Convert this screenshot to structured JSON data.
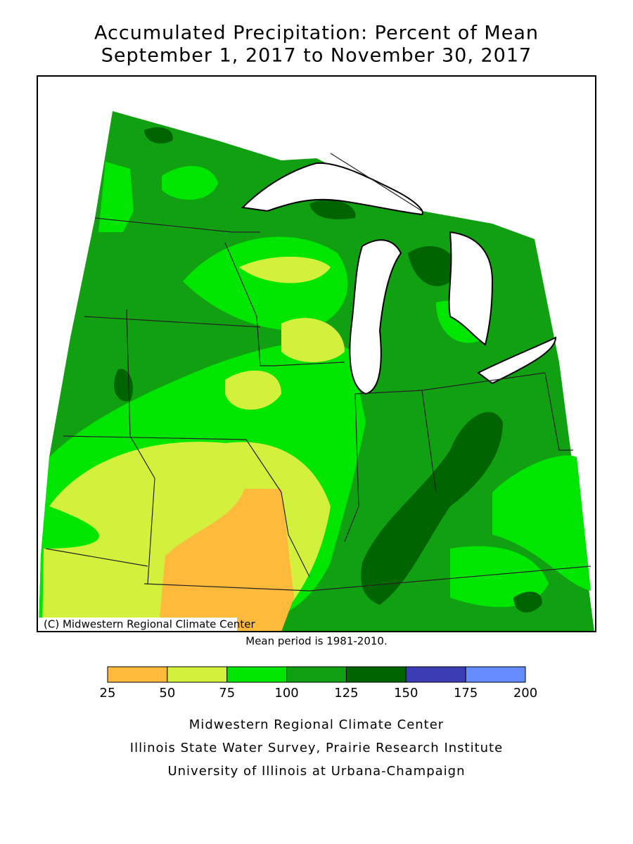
{
  "title": [
    "Accumulated Precipitation: Percent of Mean",
    "September 1, 2017 to November 30, 2017"
  ],
  "map": {
    "credit": "(C) Midwestern Regional Climate Center"
  },
  "note": "Mean period is 1981-2010.",
  "legend": {
    "ticks": [
      25,
      50,
      75,
      100,
      125,
      150,
      175,
      200
    ],
    "colors": [
      "#ffb93b",
      "#d3f03c",
      "#00e600",
      "#10a012",
      "#006400",
      "#3c3cb4",
      "#648cff"
    ]
  },
  "footer": [
    "Midwestern Regional Climate Center",
    "Illinois State Water Survey, Prairie Research Institute",
    "University of Illinois at Urbana-Champaign"
  ]
}
